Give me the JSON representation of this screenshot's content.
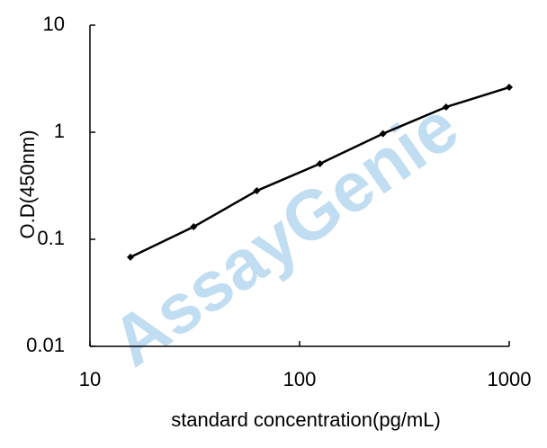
{
  "chart_data": {
    "type": "line",
    "watermark": "AssayGenie",
    "x_label": "standard concentration(pg/mL)",
    "y_label": "O.D(450nm)",
    "x": [
      15.6,
      31.25,
      62.5,
      125,
      250,
      500,
      1000
    ],
    "series": [
      {
        "color": "#000000",
        "values": [
          0.068,
          0.131,
          0.284,
          0.508,
          0.97,
          1.72,
          2.63
        ]
      }
    ],
    "xlim": [
      10,
      1000
    ],
    "ylim": [
      0.01,
      10
    ],
    "xticks": [
      10,
      100,
      1000
    ],
    "yticks": [
      0.01,
      0.1,
      1,
      10
    ],
    "xscale": "log",
    "yscale": "log",
    "grid": false
  }
}
